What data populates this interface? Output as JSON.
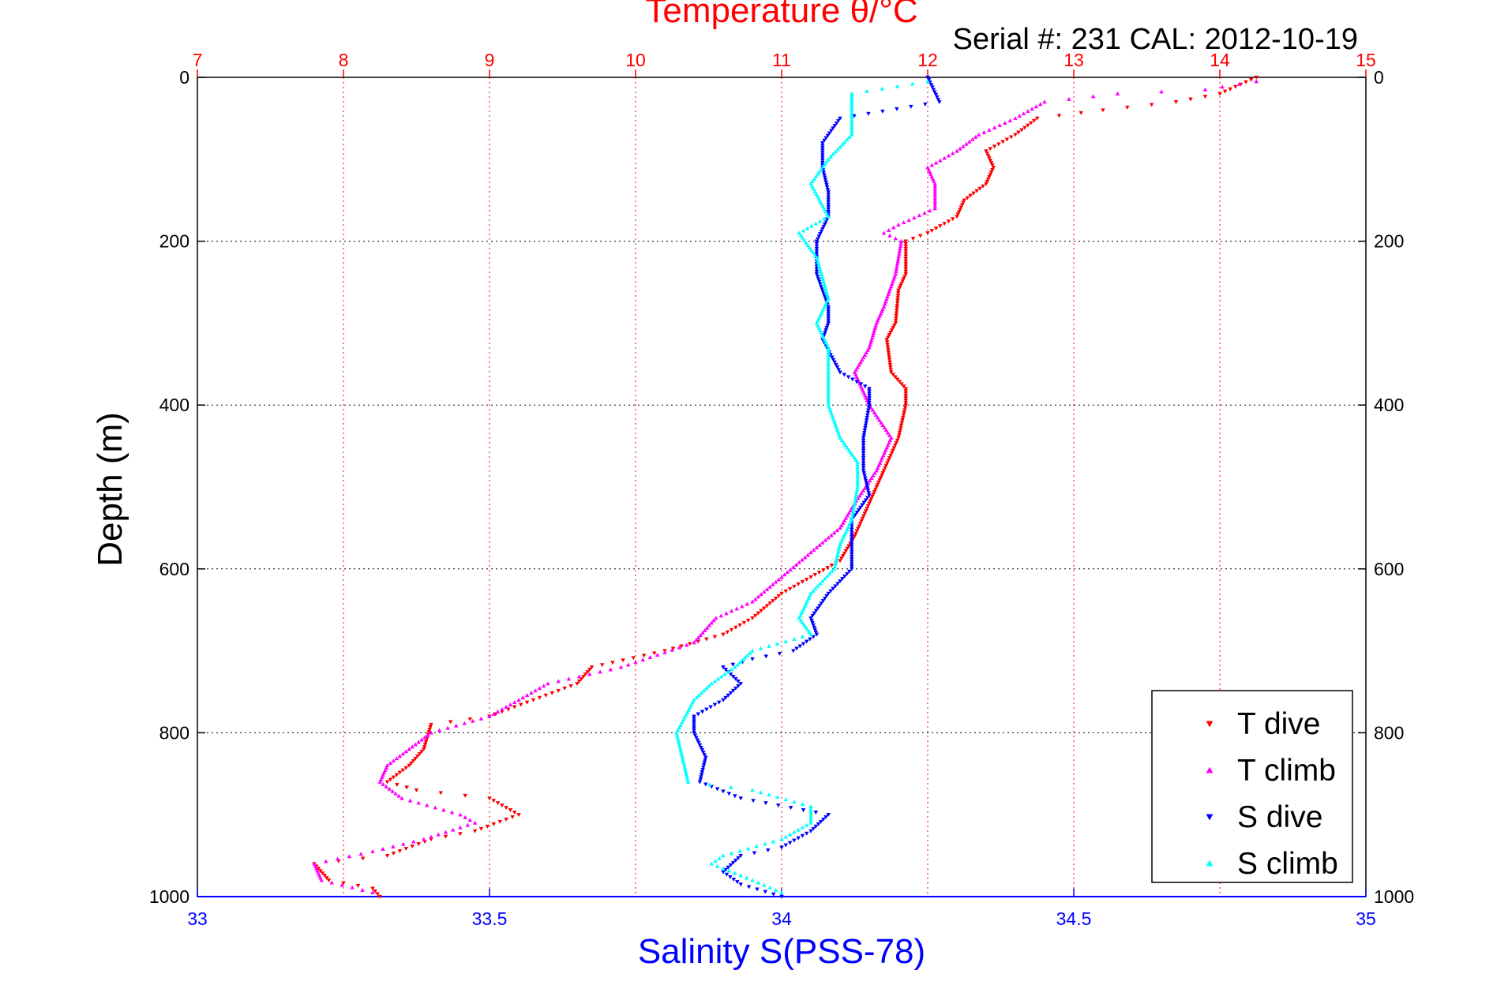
{
  "chart_data": {
    "type": "scatter",
    "title": "Temperature θ/°C",
    "subtitle": "Serial #: 231  CAL: 2012-10-19",
    "xlabel": "Salinity S(PSS-78)",
    "ylabel": "Depth (m)",
    "x_bottom": {
      "label": "Salinity S(PSS-78)",
      "range": [
        33,
        35
      ],
      "ticks": [
        33,
        33.5,
        34,
        34.5,
        35
      ],
      "tick_labels": [
        "33",
        "33.5",
        "34",
        "34.5",
        "35"
      ]
    },
    "x_top": {
      "label": "Temperature θ/°C",
      "range": [
        7,
        15
      ],
      "ticks": [
        7,
        8,
        9,
        10,
        11,
        12,
        13,
        14,
        15
      ],
      "tick_labels": [
        "7",
        "8",
        "9",
        "10",
        "11",
        "12",
        "13",
        "14",
        "15"
      ]
    },
    "y": {
      "range": [
        0,
        1000
      ],
      "reversed": true,
      "ticks": [
        0,
        200,
        400,
        600,
        800,
        1000
      ],
      "tick_labels": [
        "0",
        "200",
        "400",
        "600",
        "800",
        "1000"
      ]
    },
    "grid": true,
    "legend_position": "bottom-right",
    "series": [
      {
        "name": "T dive",
        "axis": "top",
        "color": "#ff0000",
        "marker": "triangle-down",
        "points": [
          [
            14.25,
            0
          ],
          [
            14.0,
            20
          ],
          [
            13.7,
            30
          ],
          [
            13.2,
            40
          ],
          [
            12.75,
            50
          ],
          [
            12.6,
            70
          ],
          [
            12.4,
            90
          ],
          [
            12.45,
            110
          ],
          [
            12.4,
            130
          ],
          [
            12.25,
            150
          ],
          [
            12.2,
            170
          ],
          [
            12.0,
            190
          ],
          [
            11.85,
            200
          ],
          [
            11.85,
            240
          ],
          [
            11.8,
            260
          ],
          [
            11.78,
            300
          ],
          [
            11.72,
            320
          ],
          [
            11.75,
            360
          ],
          [
            11.85,
            380
          ],
          [
            11.85,
            400
          ],
          [
            11.8,
            440
          ],
          [
            11.7,
            480
          ],
          [
            11.65,
            500
          ],
          [
            11.6,
            520
          ],
          [
            11.5,
            560
          ],
          [
            11.4,
            590
          ],
          [
            11.2,
            610
          ],
          [
            11.0,
            630
          ],
          [
            10.8,
            660
          ],
          [
            10.6,
            680
          ],
          [
            10.2,
            700
          ],
          [
            9.7,
            720
          ],
          [
            9.6,
            740
          ],
          [
            9.3,
            760
          ],
          [
            9.0,
            780
          ],
          [
            8.6,
            790
          ],
          [
            8.55,
            820
          ],
          [
            8.45,
            840
          ],
          [
            8.3,
            860
          ],
          [
            8.5,
            870
          ],
          [
            9.0,
            880
          ],
          [
            9.2,
            900
          ],
          [
            8.9,
            920
          ],
          [
            8.6,
            930
          ],
          [
            8.3,
            950
          ],
          [
            7.8,
            960
          ],
          [
            7.9,
            980
          ],
          [
            8.2,
            990
          ],
          [
            8.25,
            1000
          ]
        ]
      },
      {
        "name": "T climb",
        "axis": "top",
        "color": "#ff00ff",
        "marker": "triangle-up",
        "points": [
          [
            14.25,
            5
          ],
          [
            13.9,
            15
          ],
          [
            13.3,
            20
          ],
          [
            12.8,
            30
          ],
          [
            12.6,
            50
          ],
          [
            12.35,
            70
          ],
          [
            12.2,
            90
          ],
          [
            12.0,
            110
          ],
          [
            12.05,
            130
          ],
          [
            12.05,
            160
          ],
          [
            11.8,
            180
          ],
          [
            11.7,
            190
          ],
          [
            11.82,
            200
          ],
          [
            11.78,
            240
          ],
          [
            11.7,
            280
          ],
          [
            11.65,
            300
          ],
          [
            11.6,
            330
          ],
          [
            11.5,
            360
          ],
          [
            11.55,
            380
          ],
          [
            11.6,
            400
          ],
          [
            11.75,
            440
          ],
          [
            11.65,
            480
          ],
          [
            11.5,
            520
          ],
          [
            11.4,
            550
          ],
          [
            11.2,
            580
          ],
          [
            11.0,
            610
          ],
          [
            10.8,
            640
          ],
          [
            10.55,
            660
          ],
          [
            10.4,
            690
          ],
          [
            9.9,
            720
          ],
          [
            9.4,
            740
          ],
          [
            9.2,
            760
          ],
          [
            9.0,
            780
          ],
          [
            8.6,
            800
          ],
          [
            8.45,
            820
          ],
          [
            8.3,
            840
          ],
          [
            8.25,
            860
          ],
          [
            8.4,
            880
          ],
          [
            8.8,
            900
          ],
          [
            8.9,
            910
          ],
          [
            8.55,
            930
          ],
          [
            8.2,
            945
          ],
          [
            7.8,
            960
          ],
          [
            7.85,
            980
          ],
          [
            8.2,
            995
          ]
        ]
      },
      {
        "name": "S dive",
        "axis": "bottom",
        "color": "#0000ff",
        "marker": "triangle-down",
        "points": [
          [
            34.25,
            0
          ],
          [
            34.27,
            30
          ],
          [
            34.1,
            50
          ],
          [
            34.07,
            80
          ],
          [
            34.07,
            110
          ],
          [
            34.08,
            140
          ],
          [
            34.08,
            170
          ],
          [
            34.06,
            200
          ],
          [
            34.06,
            240
          ],
          [
            34.08,
            280
          ],
          [
            34.08,
            300
          ],
          [
            34.07,
            320
          ],
          [
            34.1,
            360
          ],
          [
            34.15,
            380
          ],
          [
            34.15,
            400
          ],
          [
            34.14,
            440
          ],
          [
            34.14,
            480
          ],
          [
            34.15,
            510
          ],
          [
            34.12,
            540
          ],
          [
            34.12,
            570
          ],
          [
            34.12,
            600
          ],
          [
            34.08,
            630
          ],
          [
            34.05,
            660
          ],
          [
            34.06,
            680
          ],
          [
            34.02,
            700
          ],
          [
            33.95,
            710
          ],
          [
            33.9,
            720
          ],
          [
            33.93,
            740
          ],
          [
            33.9,
            760
          ],
          [
            33.85,
            780
          ],
          [
            33.85,
            800
          ],
          [
            33.87,
            830
          ],
          [
            33.86,
            860
          ],
          [
            33.93,
            880
          ],
          [
            34.08,
            900
          ],
          [
            34.05,
            920
          ],
          [
            34.0,
            940
          ],
          [
            33.93,
            950
          ],
          [
            33.9,
            970
          ],
          [
            33.93,
            985
          ],
          [
            34.0,
            1000
          ]
        ]
      },
      {
        "name": "S climb",
        "axis": "bottom",
        "color": "#00ffff",
        "marker": "triangle-up",
        "points": [
          [
            34.25,
            5
          ],
          [
            34.12,
            20
          ],
          [
            34.12,
            40
          ],
          [
            34.12,
            70
          ],
          [
            34.08,
            100
          ],
          [
            34.05,
            130
          ],
          [
            34.08,
            170
          ],
          [
            34.03,
            190
          ],
          [
            34.06,
            220
          ],
          [
            34.08,
            270
          ],
          [
            34.06,
            300
          ],
          [
            34.08,
            330
          ],
          [
            34.08,
            370
          ],
          [
            34.08,
            400
          ],
          [
            34.1,
            440
          ],
          [
            34.13,
            470
          ],
          [
            34.13,
            500
          ],
          [
            34.12,
            540
          ],
          [
            34.1,
            570
          ],
          [
            34.09,
            600
          ],
          [
            34.05,
            630
          ],
          [
            34.03,
            660
          ],
          [
            34.05,
            680
          ],
          [
            33.95,
            700
          ],
          [
            33.92,
            720
          ],
          [
            33.88,
            740
          ],
          [
            33.85,
            760
          ],
          [
            33.82,
            800
          ],
          [
            33.83,
            830
          ],
          [
            33.84,
            860
          ],
          [
            33.95,
            870
          ],
          [
            34.05,
            890
          ],
          [
            34.05,
            910
          ],
          [
            34.0,
            930
          ],
          [
            33.9,
            950
          ],
          [
            33.88,
            960
          ],
          [
            33.95,
            980
          ],
          [
            34.0,
            995
          ]
        ]
      }
    ]
  }
}
